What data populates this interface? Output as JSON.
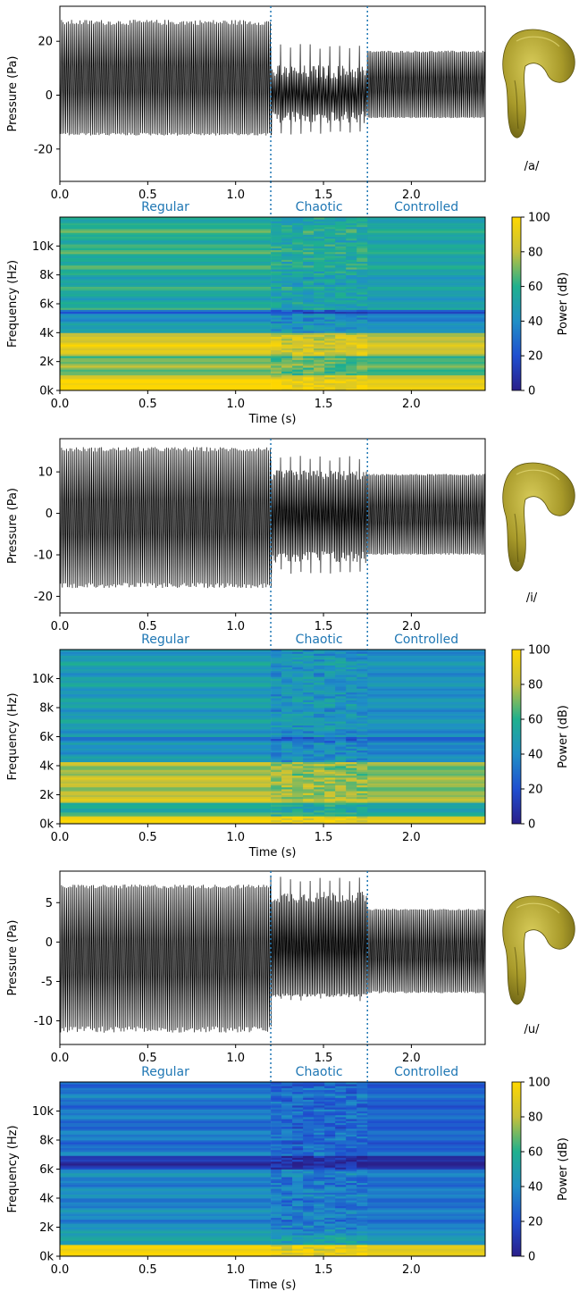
{
  "chart_data": [
    {
      "type": "line",
      "vowel": "/a/",
      "ylabel": "Pressure (Pa)",
      "xlabel": "",
      "xlim": [
        0,
        2.42
      ],
      "ylim": [
        -32,
        33
      ],
      "xticks": [
        0.0,
        0.5,
        1.0,
        1.5,
        2.0
      ],
      "yticks": [
        -20,
        0,
        20
      ],
      "boundaries": [
        1.2,
        1.75
      ],
      "segments": [
        {
          "name": "Regular",
          "t_start": 0.0,
          "t_end": 1.2,
          "upper": 28,
          "lower": -15
        },
        {
          "name": "Chaotic",
          "t_start": 1.2,
          "t_end": 1.75,
          "upper_min": 6,
          "upper_max": 19,
          "lower_min": -6,
          "lower_max": -15
        },
        {
          "name": "Controlled",
          "t_start": 1.75,
          "t_end": 2.42,
          "upper": 16.5,
          "lower": -8.5
        }
      ],
      "regions": [
        "Regular",
        "Chaotic",
        "Controlled"
      ],
      "region_color": "#1f77b4"
    },
    {
      "type": "heatmap",
      "vowel": "/a/",
      "xlabel": "Time (s)",
      "ylabel": "Frequency (Hz)",
      "colorbar_label": "Power (dB)",
      "xlim": [
        0,
        2.42
      ],
      "ylim": [
        0,
        12000
      ],
      "xticks": [
        0.0,
        0.5,
        1.0,
        1.5,
        2.0
      ],
      "yticks": [
        "0k",
        "2k",
        "4k",
        "6k",
        "8k",
        "10k"
      ],
      "colorbar_ticks": [
        0,
        20,
        40,
        60,
        80,
        100
      ],
      "clim": [
        0,
        100
      ],
      "colormap": "cividis-like (navy→blue→teal→green→yellow)"
    },
    {
      "type": "line",
      "vowel": "/i/",
      "ylabel": "Pressure (Pa)",
      "xlabel": "",
      "xlim": [
        0,
        2.42
      ],
      "ylim": [
        -24,
        18
      ],
      "xticks": [
        0.0,
        0.5,
        1.0,
        1.5,
        2.0
      ],
      "yticks": [
        -20,
        -10,
        0,
        10
      ],
      "boundaries": [
        1.2,
        1.75
      ],
      "segments": [
        {
          "name": "Regular",
          "t_start": 0.0,
          "t_end": 1.2,
          "upper": 16,
          "lower": -18
        },
        {
          "name": "Chaotic",
          "t_start": 1.2,
          "t_end": 1.75,
          "upper_min": 8,
          "upper_max": 14,
          "lower_min": -9,
          "lower_max": -15
        },
        {
          "name": "Controlled",
          "t_start": 1.75,
          "t_end": 2.42,
          "upper": 9.5,
          "lower": -10
        }
      ],
      "regions": [
        "Regular",
        "Chaotic",
        "Controlled"
      ],
      "region_color": "#1f77b4"
    },
    {
      "type": "heatmap",
      "vowel": "/i/",
      "xlabel": "Time (s)",
      "ylabel": "Frequency (Hz)",
      "colorbar_label": "Power (dB)",
      "xlim": [
        0,
        2.42
      ],
      "ylim": [
        0,
        12000
      ],
      "xticks": [
        0.0,
        0.5,
        1.0,
        1.5,
        2.0
      ],
      "yticks": [
        "0k",
        "2k",
        "4k",
        "6k",
        "8k",
        "10k"
      ],
      "colorbar_ticks": [
        0,
        20,
        40,
        60,
        80,
        100
      ],
      "clim": [
        0,
        100
      ],
      "colormap": "cividis-like (navy→blue→teal→green→yellow)"
    },
    {
      "type": "line",
      "vowel": "/u/",
      "ylabel": "Pressure (Pa)",
      "xlabel": "",
      "xlim": [
        0,
        2.42
      ],
      "ylim": [
        -13,
        9
      ],
      "xticks": [
        0.0,
        0.5,
        1.0,
        1.5,
        2.0
      ],
      "yticks": [
        -10,
        -5,
        0,
        5
      ],
      "boundaries": [
        1.2,
        1.75
      ],
      "segments": [
        {
          "name": "Regular",
          "t_start": 0.0,
          "t_end": 1.2,
          "upper": 7.3,
          "lower": -11.5
        },
        {
          "name": "Chaotic",
          "t_start": 1.2,
          "t_end": 1.75,
          "upper_min": 5,
          "upper_max": 8.5,
          "lower_min": -6.5,
          "lower_max": -7.5
        },
        {
          "name": "Controlled",
          "t_start": 1.75,
          "t_end": 2.42,
          "upper": 4.2,
          "lower": -6.5
        }
      ],
      "regions": [
        "Regular",
        "Chaotic",
        "Controlled"
      ],
      "region_color": "#1f77b4"
    },
    {
      "type": "heatmap",
      "vowel": "/u/",
      "xlabel": "Time (s)",
      "ylabel": "Frequency (Hz)",
      "colorbar_label": "Power (dB)",
      "xlim": [
        0,
        2.42
      ],
      "ylim": [
        0,
        12000
      ],
      "xticks": [
        0.0,
        0.5,
        1.0,
        1.5,
        2.0
      ],
      "yticks": [
        "0k",
        "2k",
        "4k",
        "6k",
        "8k",
        "10k"
      ],
      "colorbar_ticks": [
        0,
        20,
        40,
        60,
        80,
        100
      ],
      "clim": [
        0,
        100
      ],
      "colormap": "cividis-like (navy→blue→teal→green→yellow)"
    }
  ],
  "vocal_tracts": [
    {
      "label": "/a/",
      "icon": "vocal-tract-3d-model",
      "color": "#a89a2a"
    },
    {
      "label": "/i/",
      "icon": "vocal-tract-3d-model",
      "color": "#a89a2a"
    },
    {
      "label": "/u/",
      "icon": "vocal-tract-3d-model",
      "color": "#a89a2a"
    }
  ]
}
